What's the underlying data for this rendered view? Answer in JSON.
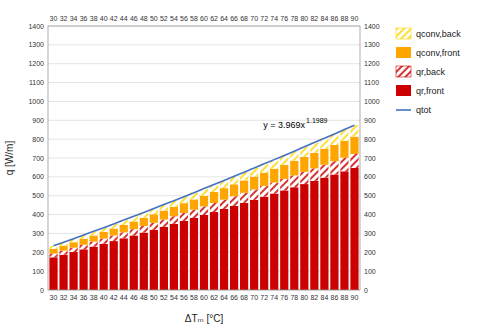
{
  "chart_data": {
    "type": "bar",
    "stacked": true,
    "categories": [
      "30",
      "32",
      "34",
      "36",
      "38",
      "40",
      "42",
      "44",
      "46",
      "48",
      "50",
      "52",
      "54",
      "56",
      "58",
      "60",
      "62",
      "64",
      "66",
      "68",
      "70",
      "72",
      "74",
      "76",
      "78",
      "80",
      "82",
      "84",
      "86",
      "88",
      "90"
    ],
    "series": [
      {
        "name": "qr,front",
        "color": "#cc0000",
        "values": [
          173.31,
          187.26,
          201.37,
          215.66,
          230.1,
          244.69,
          259.43,
          274.31,
          289.33,
          304.48,
          319.72,
          335.14,
          350.65,
          366.28,
          382.02,
          397.87,
          413.82,
          429.87,
          446.03,
          462.28,
          478.63,
          495.08,
          511.6,
          528.23,
          544.94,
          561.7,
          578.58,
          595.57,
          612.59,
          629.48,
          646.93
        ]
      },
      {
        "name": "qr,back",
        "color": "#cc0000",
        "values": [
          19.91,
          21.51,
          23.13,
          24.77,
          26.43,
          28.11,
          29.8,
          31.51,
          33.23,
          34.97,
          36.72,
          38.5,
          40.28,
          42.07,
          43.88,
          45.7,
          47.53,
          49.38,
          51.23,
          53.1,
          54.98,
          56.87,
          58.77,
          60.67,
          62.59,
          64.52,
          66.46,
          68.41,
          70.36,
          72.3,
          74.31
        ]
      },
      {
        "name": "qconv,front",
        "color": "#ffa500",
        "values": [
          24.59,
          26.57,
          28.57,
          30.6,
          32.65,
          34.72,
          36.81,
          38.92,
          41.05,
          43.2,
          45.37,
          47.55,
          49.76,
          51.97,
          54.21,
          56.45,
          58.72,
          61.0,
          63.29,
          65.59,
          67.91,
          70.25,
          72.59,
          74.95,
          77.32,
          79.7,
          82.1,
          84.51,
          86.92,
          89.32,
          91.79
        ]
      },
      {
        "name": "qconv,back",
        "color": "#ffd700",
        "values": [
          16.39,
          17.71,
          19.05,
          20.4,
          21.77,
          23.15,
          24.54,
          25.95,
          27.37,
          28.8,
          30.24,
          31.7,
          33.17,
          34.65,
          36.14,
          37.64,
          39.15,
          40.66,
          42.19,
          43.73,
          45.28,
          46.83,
          48.4,
          49.97,
          51.55,
          53.13,
          54.73,
          56.34,
          57.95,
          59.54,
          61.2
        ]
      },
      {
        "name": "qtot",
        "type": "line",
        "color": "#4472c4",
        "values": [
          234.21,
          253.05,
          272.13,
          291.43,
          310.95,
          330.67,
          350.59,
          370.69,
          390.99,
          411.45,
          432.05,
          452.9,
          473.86,
          494.98,
          516.24,
          537.66,
          559.22,
          580.91,
          602.74,
          624.71,
          646.8,
          669.03,
          691.36,
          713.82,
          736.4,
          759.05,
          781.86,
          804.82,
          827.82,
          850.64,
          874.22
        ]
      }
    ],
    "xlabel": "ΔTₘ [°C]",
    "ylabel": "q [W/m]",
    "ylim": [
      0,
      1400
    ],
    "yticks": [
      0,
      100,
      200,
      300,
      400,
      500,
      600,
      700,
      800,
      900,
      1000,
      1100,
      1200,
      1300,
      1400
    ],
    "grid": true,
    "legend": "right",
    "annotations": [
      {
        "text": "y = 3.969x",
        "superscript": "1.1989"
      }
    ]
  }
}
